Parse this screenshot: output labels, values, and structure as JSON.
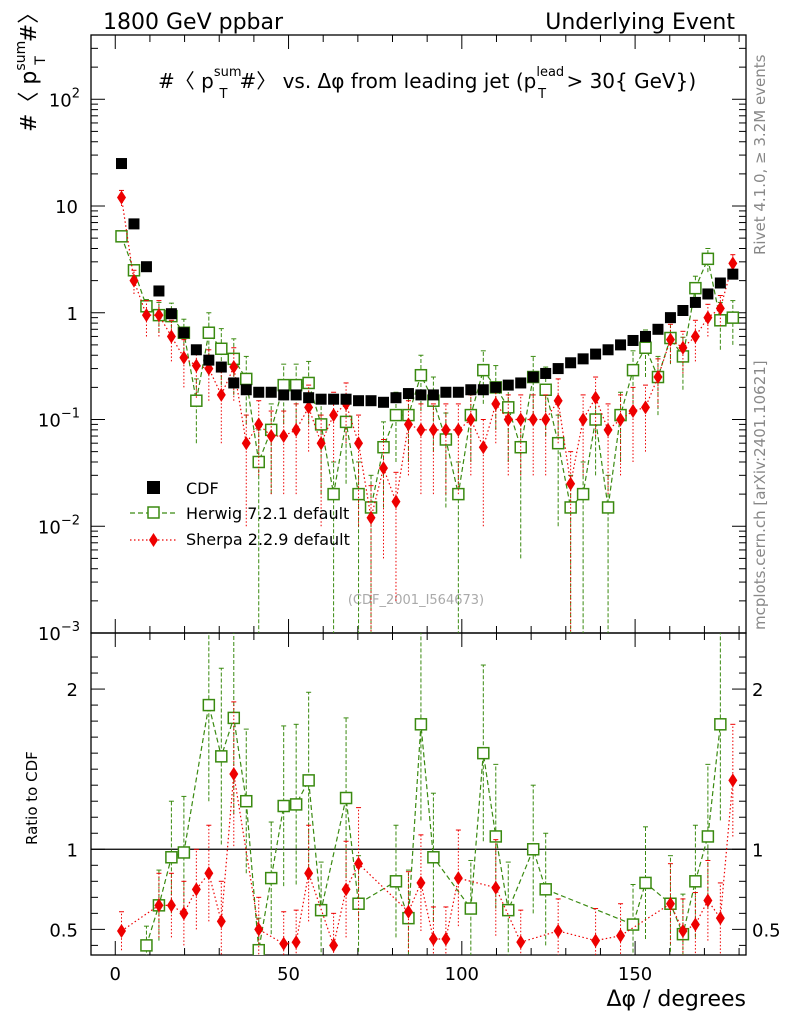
{
  "header": {
    "left": "1800 GeV ppbar",
    "right": "Underlying Event"
  },
  "side_labels": {
    "top": "Rivet 4.1.0, ≥ 3.2M events",
    "bottom": "mcplots.cern.ch [arXiv:2401.10621]"
  },
  "watermark": "(CDF_2001_I564673)",
  "title": {
    "lhs": "#〈 p",
    "lhs_sup": "sum",
    "lhs_sub": "T",
    "lhs_end": "#〉 vs. Δφ from leading jet  (p",
    "rhs_sup": "lead",
    "rhs_sub": "T",
    "rhs_end": " > 30{ GeV})"
  },
  "ylabel_main": {
    "a": "#〈 p",
    "sup": "sum",
    "sub": "T",
    "b": "#〉"
  },
  "ylabel_ratio": "Ratio to CDF",
  "xlabel": "Δφ / degrees",
  "colors": {
    "cdf": "#000000",
    "herwig": "#3a8a10",
    "sherpa": "#ee0000",
    "axis": "#000000"
  },
  "chart_data": [
    {
      "type": "scatter",
      "panel": "main",
      "yscale": "log",
      "xlim": [
        -7,
        182
      ],
      "ylim": [
        0.001,
        400
      ],
      "xticks": [
        0,
        50,
        100,
        150
      ],
      "yticks": [
        {
          "value": 0.001,
          "base": "10",
          "exp": "−3"
        },
        {
          "value": 0.01,
          "base": "10",
          "exp": "−2"
        },
        {
          "value": 0.1,
          "base": "10",
          "exp": "−1"
        },
        {
          "value": 1,
          "label": "1"
        },
        {
          "value": 10,
          "label": "10"
        },
        {
          "value": 100,
          "base": "10",
          "exp": "2"
        }
      ],
      "series": [
        {
          "name": "CDF",
          "marker": "square-filled",
          "x": [
            1.8,
            5.4,
            9.0,
            12.6,
            16.2,
            19.8,
            23.4,
            27.0,
            30.6,
            34.2,
            37.8,
            41.4,
            45.0,
            48.6,
            52.2,
            55.8,
            59.4,
            63.0,
            66.6,
            70.2,
            73.8,
            77.4,
            81.0,
            84.6,
            88.2,
            91.8,
            95.4,
            99.0,
            102.6,
            106.2,
            109.8,
            113.4,
            117.0,
            120.6,
            124.2,
            127.8,
            131.4,
            135.0,
            138.6,
            142.2,
            145.8,
            149.4,
            153.0,
            156.6,
            160.2,
            163.8,
            167.4,
            171.0,
            174.6,
            178.2
          ],
          "y": [
            25,
            6.8,
            2.7,
            1.6,
            0.98,
            0.65,
            0.45,
            0.36,
            0.31,
            0.22,
            0.19,
            0.18,
            0.18,
            0.17,
            0.17,
            0.16,
            0.155,
            0.155,
            0.155,
            0.15,
            0.15,
            0.145,
            0.16,
            0.175,
            0.17,
            0.17,
            0.18,
            0.18,
            0.19,
            0.19,
            0.2,
            0.21,
            0.22,
            0.25,
            0.27,
            0.3,
            0.34,
            0.37,
            0.41,
            0.45,
            0.5,
            0.55,
            0.6,
            0.7,
            0.9,
            1.05,
            1.25,
            1.5,
            1.9,
            2.3
          ]
        },
        {
          "name": "Herwig 7.2.1 default",
          "marker": "square-open",
          "line": "dashed",
          "x": [
            1.8,
            5.4,
            9.0,
            12.6,
            16.2,
            19.8,
            23.4,
            27.0,
            30.6,
            34.2,
            37.8,
            41.4,
            45.0,
            48.6,
            52.2,
            55.8,
            59.4,
            63.0,
            66.6,
            70.2,
            73.8,
            77.4,
            81.0,
            84.6,
            88.2,
            91.8,
            95.4,
            99.0,
            102.6,
            106.2,
            109.8,
            113.4,
            117.0,
            120.6,
            124.2,
            127.8,
            131.4,
            135.0,
            138.6,
            142.2,
            145.8,
            149.4,
            153.0,
            156.6,
            160.2,
            163.8,
            167.4,
            171.0,
            174.6,
            178.2
          ],
          "y": [
            5.2,
            2.5,
            1.15,
            0.95,
            0.93,
            0.65,
            0.15,
            0.65,
            0.46,
            0.37,
            0.24,
            0.04,
            0.08,
            0.21,
            0.21,
            0.22,
            0.09,
            0.02,
            0.095,
            0.02,
            0.015,
            0.055,
            0.11,
            0.11,
            0.26,
            0.15,
            0.065,
            0.02,
            0.11,
            0.29,
            0.2,
            0.13,
            0.055,
            0.25,
            0.19,
            0.06,
            0.015,
            0.02,
            0.1,
            0.015,
            0.11,
            0.29,
            0.47,
            0.25,
            0.58,
            0.39,
            1.7,
            3.2,
            0.85,
            0.9
          ],
          "err": [
            0.25,
            0.2,
            0.18,
            0.3,
            0.3,
            0.22,
            0.09,
            0.35,
            0.25,
            0.2,
            0.15,
            0.04,
            0.06,
            0.12,
            0.12,
            0.13,
            0.07,
            0.02,
            0.07,
            0.02,
            0.015,
            0.04,
            0.07,
            0.07,
            0.14,
            0.1,
            0.05,
            0.02,
            0.07,
            0.15,
            0.12,
            0.09,
            0.05,
            0.14,
            0.12,
            0.05,
            0.015,
            0.02,
            0.07,
            0.015,
            0.07,
            0.15,
            0.22,
            0.14,
            0.25,
            0.2,
            0.5,
            0.8,
            0.4,
            0.4
          ]
        },
        {
          "name": "Sherpa 2.2.9 default",
          "marker": "diamond-filled",
          "line": "dotted",
          "x": [
            1.8,
            5.4,
            9.0,
            12.6,
            16.2,
            19.8,
            23.4,
            27.0,
            30.6,
            34.2,
            37.8,
            41.4,
            45.0,
            48.6,
            52.2,
            55.8,
            59.4,
            63.0,
            66.6,
            70.2,
            73.8,
            77.4,
            81.0,
            84.6,
            88.2,
            91.8,
            95.4,
            99.0,
            102.6,
            106.2,
            109.8,
            113.4,
            117.0,
            120.6,
            124.2,
            127.8,
            131.4,
            135.0,
            138.6,
            142.2,
            145.8,
            149.4,
            153.0,
            156.6,
            160.2,
            163.8,
            167.4,
            171.0,
            174.6,
            178.2
          ],
          "y": [
            12,
            2.0,
            0.95,
            0.95,
            0.6,
            0.38,
            0.32,
            0.3,
            0.17,
            0.31,
            0.06,
            0.09,
            0.07,
            0.07,
            0.08,
            0.13,
            0.06,
            0.11,
            0.14,
            0.06,
            0.012,
            0.035,
            0.017,
            0.09,
            0.08,
            0.08,
            0.08,
            0.08,
            0.1,
            0.055,
            0.14,
            0.1,
            0.1,
            0.1,
            0.1,
            0.15,
            0.025,
            0.1,
            0.16,
            0.08,
            0.1,
            0.12,
            0.13,
            0.25,
            0.56,
            0.47,
            0.6,
            0.9,
            1.1,
            2.9
          ],
          "err": [
            2.0,
            0.5,
            0.35,
            0.35,
            0.25,
            0.18,
            0.16,
            0.15,
            0.11,
            0.16,
            0.05,
            0.06,
            0.05,
            0.05,
            0.06,
            0.08,
            0.05,
            0.07,
            0.08,
            0.05,
            0.012,
            0.03,
            0.015,
            0.06,
            0.06,
            0.06,
            0.06,
            0.06,
            0.07,
            0.045,
            0.08,
            0.07,
            0.07,
            0.07,
            0.07,
            0.09,
            0.025,
            0.07,
            0.09,
            0.06,
            0.07,
            0.08,
            0.08,
            0.12,
            0.22,
            0.2,
            0.25,
            0.3,
            0.35,
            0.6
          ]
        }
      ],
      "legend_position": "lower-left"
    },
    {
      "type": "scatter",
      "panel": "ratio",
      "yscale": "linear",
      "xlim": [
        -7,
        182
      ],
      "ylim": [
        0.34,
        2.35
      ],
      "xticks": [
        0,
        50,
        100,
        150
      ],
      "xticklabels": [
        "0",
        "50",
        "100",
        "150"
      ],
      "yticks": [
        0.5,
        1,
        2
      ],
      "yticklabels": [
        "0.5",
        "1",
        "2"
      ],
      "reference_line": 1,
      "series": [
        {
          "name": "Herwig 7.2.1 default",
          "x": [
            9.0,
            12.6,
            16.2,
            19.8,
            27.0,
            30.6,
            34.2,
            37.8,
            41.4,
            45.0,
            48.6,
            52.2,
            55.8,
            59.4,
            66.6,
            70.2,
            81.0,
            84.6,
            88.2,
            91.8,
            102.6,
            106.2,
            109.8,
            113.4,
            120.6,
            124.2,
            149.4,
            153.0,
            160.2,
            163.8,
            167.4,
            171.0,
            174.6
          ],
          "y": [
            0.4,
            0.65,
            0.95,
            0.98,
            1.9,
            1.58,
            1.82,
            1.3,
            0.37,
            0.82,
            1.27,
            1.28,
            1.43,
            0.62,
            1.32,
            0.66,
            0.8,
            0.57,
            1.78,
            0.95,
            0.63,
            1.6,
            1.08,
            0.62,
            1.0,
            0.75,
            0.53,
            0.79,
            0.66,
            0.47,
            0.8,
            1.08,
            1.78
          ],
          "err": [
            0.12,
            0.22,
            0.35,
            0.35,
            0.6,
            0.55,
            0.6,
            0.45,
            0.2,
            0.35,
            0.5,
            0.5,
            0.55,
            0.3,
            0.5,
            0.3,
            0.35,
            0.3,
            0.6,
            0.4,
            0.3,
            0.55,
            0.45,
            0.3,
            0.4,
            0.35,
            0.25,
            0.35,
            0.3,
            0.25,
            0.35,
            0.45,
            0.6
          ]
        },
        {
          "name": "Sherpa 2.2.9 default",
          "x": [
            1.8,
            12.6,
            16.2,
            19.8,
            23.4,
            27.0,
            30.6,
            34.2,
            41.4,
            48.6,
            52.2,
            55.8,
            63.0,
            66.6,
            70.2,
            84.6,
            88.2,
            91.8,
            95.4,
            99.0,
            109.8,
            117.0,
            127.8,
            138.6,
            145.8,
            160.2,
            163.8,
            167.4,
            171.0,
            174.6,
            178.2
          ],
          "y": [
            0.49,
            0.65,
            0.65,
            0.6,
            0.75,
            0.85,
            0.55,
            1.47,
            0.5,
            0.41,
            0.42,
            0.85,
            0.4,
            0.75,
            0.91,
            0.61,
            0.79,
            0.44,
            0.44,
            0.82,
            0.76,
            0.42,
            0.49,
            0.43,
            0.46,
            0.66,
            0.49,
            0.53,
            0.68,
            0.57,
            1.43
          ],
          "err": [
            0.12,
            0.2,
            0.2,
            0.2,
            0.25,
            0.3,
            0.25,
            0.45,
            0.2,
            0.2,
            0.2,
            0.3,
            0.2,
            0.3,
            0.35,
            0.25,
            0.3,
            0.2,
            0.2,
            0.3,
            0.3,
            0.2,
            0.2,
            0.2,
            0.2,
            0.25,
            0.2,
            0.2,
            0.25,
            0.22,
            0.35
          ]
        }
      ]
    }
  ]
}
